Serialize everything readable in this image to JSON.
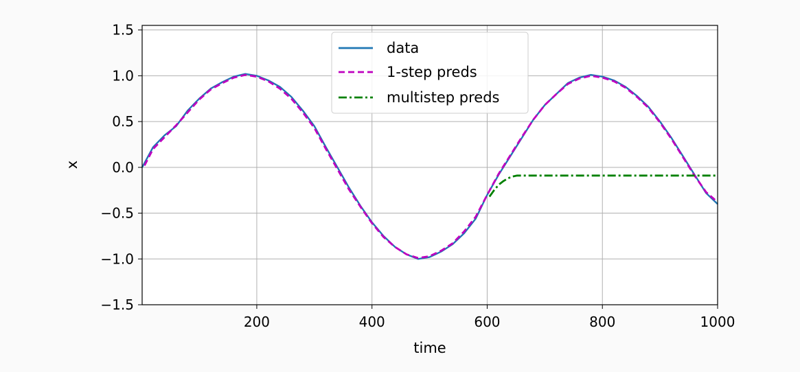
{
  "chart_data": {
    "type": "line",
    "xlabel": "time",
    "ylabel": "x",
    "xlim": [
      1,
      1000
    ],
    "ylim": [
      -1.5,
      1.55
    ],
    "xticks": [
      200,
      400,
      600,
      800,
      1000
    ],
    "xtick_labels": [
      "200",
      "400",
      "600",
      "800",
      "1000"
    ],
    "yticks": [
      -1.5,
      -1.0,
      -0.5,
      0.0,
      0.5,
      1.0,
      1.5
    ],
    "ytick_labels": [
      "−1.5",
      "−1.0",
      "−0.5",
      "0.0",
      "0.5",
      "1.0",
      "1.5"
    ],
    "grid": true,
    "legend_position": "top-center",
    "series": [
      {
        "name": "data",
        "color": "#1f77b4",
        "style": "solid",
        "x": [
          1,
          20,
          40,
          60,
          80,
          100,
          120,
          140,
          160,
          180,
          200,
          220,
          240,
          260,
          280,
          300,
          320,
          340,
          360,
          380,
          400,
          420,
          440,
          460,
          480,
          500,
          520,
          540,
          560,
          580,
          600,
          620,
          640,
          660,
          680,
          700,
          720,
          740,
          760,
          780,
          800,
          820,
          840,
          860,
          880,
          900,
          920,
          940,
          960,
          980,
          1000
        ],
        "y": [
          0.0,
          0.22,
          0.35,
          0.45,
          0.62,
          0.75,
          0.86,
          0.93,
          0.99,
          1.02,
          1.0,
          0.95,
          0.88,
          0.77,
          0.62,
          0.45,
          0.22,
          0.0,
          -0.22,
          -0.42,
          -0.6,
          -0.75,
          -0.87,
          -0.95,
          -1.0,
          -0.98,
          -0.92,
          -0.84,
          -0.72,
          -0.56,
          -0.3,
          -0.08,
          0.12,
          0.32,
          0.52,
          0.68,
          0.8,
          0.92,
          0.98,
          1.01,
          0.99,
          0.95,
          0.88,
          0.78,
          0.66,
          0.5,
          0.32,
          0.12,
          -0.08,
          -0.28,
          -0.4
        ]
      },
      {
        "name": "1-step preds",
        "color": "#bf00bf",
        "style": "dashed",
        "x": [
          5,
          20,
          40,
          60,
          80,
          100,
          120,
          140,
          160,
          180,
          200,
          220,
          240,
          260,
          280,
          300,
          320,
          340,
          360,
          380,
          400,
          420,
          440,
          460,
          480,
          500,
          520,
          540,
          560,
          580,
          600,
          620,
          640,
          660,
          680,
          700,
          720,
          740,
          760,
          780,
          800,
          820,
          840,
          860,
          880,
          900,
          920,
          940,
          960,
          980,
          1000
        ],
        "y": [
          0.02,
          0.2,
          0.33,
          0.46,
          0.6,
          0.74,
          0.85,
          0.92,
          0.98,
          1.01,
          0.99,
          0.94,
          0.86,
          0.75,
          0.6,
          0.43,
          0.2,
          -0.02,
          -0.24,
          -0.43,
          -0.61,
          -0.76,
          -0.87,
          -0.95,
          -0.99,
          -0.97,
          -0.91,
          -0.83,
          -0.7,
          -0.54,
          -0.3,
          -0.07,
          0.13,
          0.33,
          0.52,
          0.68,
          0.8,
          0.91,
          0.97,
          1.0,
          0.98,
          0.94,
          0.87,
          0.77,
          0.65,
          0.49,
          0.31,
          0.11,
          -0.09,
          -0.27,
          -0.38
        ]
      },
      {
        "name": "multistep preds",
        "color": "#008000",
        "style": "dashdot",
        "x": [
          604,
          612,
          620,
          628,
          636,
          644,
          652,
          660,
          700,
          800,
          900,
          1000
        ],
        "y": [
          -0.32,
          -0.25,
          -0.19,
          -0.15,
          -0.12,
          -0.1,
          -0.09,
          -0.09,
          -0.09,
          -0.09,
          -0.09,
          -0.09
        ]
      }
    ]
  }
}
